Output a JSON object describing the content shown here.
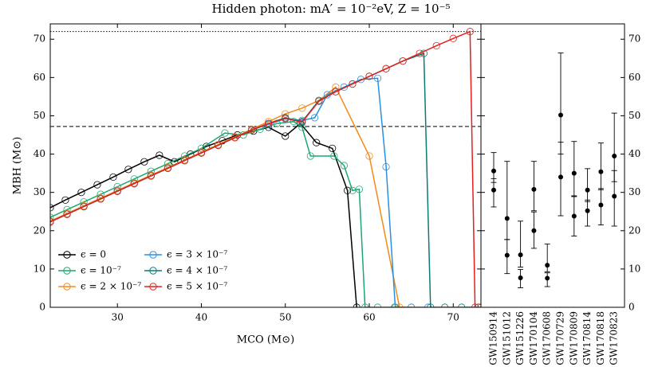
{
  "chart_data": [
    {
      "type": "line",
      "title": "Hidden photon: mA′ = 10⁻²eV, Z = 10⁻⁵",
      "xlabel": "MCO (M⊙)",
      "ylabel": "MBH (M⊙)",
      "xlim": [
        22,
        73.3
      ],
      "ylim": [
        0,
        74
      ],
      "xticks": [
        30,
        40,
        50,
        60,
        70
      ],
      "yticks": [
        0,
        10,
        20,
        30,
        40,
        50,
        60,
        70
      ],
      "hlines": [
        {
          "value": 72,
          "style": "dotted"
        },
        {
          "value": 47.2,
          "style": "dashed"
        }
      ],
      "legend": "lower left",
      "series": [
        {
          "name": "ϵ = 0",
          "color": "#000000",
          "x": [
            22,
            23.8,
            25.7,
            27.6,
            29.5,
            31.3,
            33.2,
            35,
            36.8,
            38.7,
            40.6,
            42.5,
            44.3,
            46.2,
            48,
            50,
            51.8,
            53.7,
            55.6,
            57.4,
            58.5
          ],
          "values": [
            26,
            28,
            30,
            32,
            34,
            36,
            38,
            39.7,
            38,
            40,
            42,
            43.5,
            45,
            46,
            47,
            44.7,
            48,
            43,
            41.5,
            30.5,
            0
          ]
        },
        {
          "name": "ϵ = 10⁻⁷",
          "color": "#1aa86f",
          "x": [
            22,
            24,
            26,
            28,
            30,
            32,
            34,
            36,
            38,
            40,
            42.8,
            45,
            47,
            49,
            51,
            52,
            53,
            55.8,
            57,
            58,
            58.8,
            59.5,
            61,
            63
          ],
          "values": [
            23.5,
            25.5,
            27.5,
            29.5,
            31.5,
            33.5,
            35.5,
            37.5,
            39.5,
            41.5,
            45.5,
            45,
            46.5,
            48,
            48.5,
            47,
            39.5,
            39.5,
            37,
            30.5,
            30.8,
            0,
            0,
            0
          ]
        },
        {
          "name": "ϵ = 2 × 10⁻⁷",
          "color": "#f28a1a",
          "x": [
            22,
            24,
            26,
            28,
            30,
            32,
            34,
            36,
            38,
            40,
            42,
            44,
            46,
            48,
            50,
            52,
            54,
            56,
            60,
            63.6,
            65
          ],
          "values": [
            22.5,
            24.5,
            26.5,
            28.5,
            30.5,
            32.5,
            34.5,
            36.5,
            38.5,
            40.5,
            42.5,
            44.5,
            46.5,
            48.5,
            50.5,
            52,
            54,
            57.5,
            39.5,
            0,
            0
          ]
        },
        {
          "name": "ϵ = 3 × 10⁻⁷",
          "color": "#2b8fe0",
          "x": [
            22,
            24,
            26,
            28,
            30,
            32,
            34,
            36,
            38,
            40,
            42,
            44,
            46,
            48,
            50,
            52,
            53.5,
            55,
            57,
            59,
            61,
            62,
            63.1,
            65,
            67
          ],
          "values": [
            22.3,
            24.3,
            26.3,
            28.3,
            30.3,
            32.3,
            34.3,
            36.3,
            38.3,
            40.3,
            42.3,
            44.3,
            46.3,
            47.8,
            49.2,
            48.8,
            49.5,
            55.5,
            57.5,
            59.5,
            59.8,
            36.7,
            0,
            0,
            0
          ]
        },
        {
          "name": "ϵ = 4 × 10⁻⁷",
          "color": "#0a7a76",
          "x": [
            22,
            24,
            26,
            28,
            30,
            32,
            34,
            36,
            38,
            40,
            42,
            44,
            46,
            48,
            50,
            52,
            54,
            56,
            58,
            60,
            62,
            64,
            66.5,
            67.3,
            69,
            71,
            73
          ],
          "values": [
            22.3,
            24.3,
            26.3,
            28.3,
            30.3,
            32.3,
            34.3,
            36.3,
            38.3,
            40.3,
            42.3,
            44.3,
            46.3,
            48,
            49.5,
            48.5,
            54,
            56.3,
            58.3,
            60.3,
            62.3,
            64.3,
            66.3,
            0,
            0,
            0,
            0
          ]
        },
        {
          "name": "ϵ = 5 × 10⁻⁷",
          "color": "#e3201c",
          "x": [
            22,
            24,
            26,
            28,
            30,
            32,
            34,
            36,
            38,
            40,
            42,
            44,
            46,
            48,
            50,
            52,
            54,
            56,
            58,
            60,
            62,
            64,
            66,
            68,
            70,
            72,
            72.6,
            73.3
          ],
          "values": [
            22.3,
            24.3,
            26.3,
            28.3,
            30.3,
            32.3,
            34.3,
            36.3,
            38.3,
            40.3,
            42.3,
            44.3,
            46.3,
            48,
            49.3,
            48.3,
            53.8,
            56.3,
            58.3,
            60.3,
            62.3,
            64.3,
            66.3,
            68.3,
            70.2,
            72,
            0,
            0
          ]
        }
      ]
    },
    {
      "type": "errorbar",
      "ylim": [
        0,
        74
      ],
      "yticks": [
        0,
        10,
        20,
        30,
        40,
        50,
        60,
        70
      ],
      "categories": [
        "GW150914",
        "GW151012",
        "GW151226",
        "GW170104",
        "GW170608",
        "GW170729",
        "GW170809",
        "GW170814",
        "GW170818",
        "GW170823"
      ],
      "color": "#000000",
      "series": [
        {
          "values": [
            35.6,
            23.2,
            13.7,
            30.8,
            11.0,
            50.2,
            35.0,
            30.6,
            35.4,
            39.5
          ],
          "err_plus": [
            4.8,
            14.9,
            8.8,
            7.3,
            5.5,
            16.2,
            8.3,
            5.6,
            7.5,
            11.2
          ],
          "err_minus": [
            3.0,
            5.5,
            3.2,
            5.6,
            1.7,
            10.2,
            5.9,
            3.0,
            4.7,
            6.7
          ]
        },
        {
          "values": [
            30.6,
            13.6,
            7.7,
            20.0,
            7.6,
            34.0,
            23.8,
            25.2,
            26.7,
            29.0
          ],
          "err_plus": [
            3.0,
            4.1,
            2.2,
            4.9,
            1.4,
            9.1,
            5.1,
            2.8,
            4.3,
            6.7
          ],
          "err_minus": [
            4.4,
            4.8,
            2.6,
            4.6,
            2.2,
            10.1,
            5.2,
            4.0,
            5.2,
            7.8
          ]
        }
      ]
    }
  ]
}
